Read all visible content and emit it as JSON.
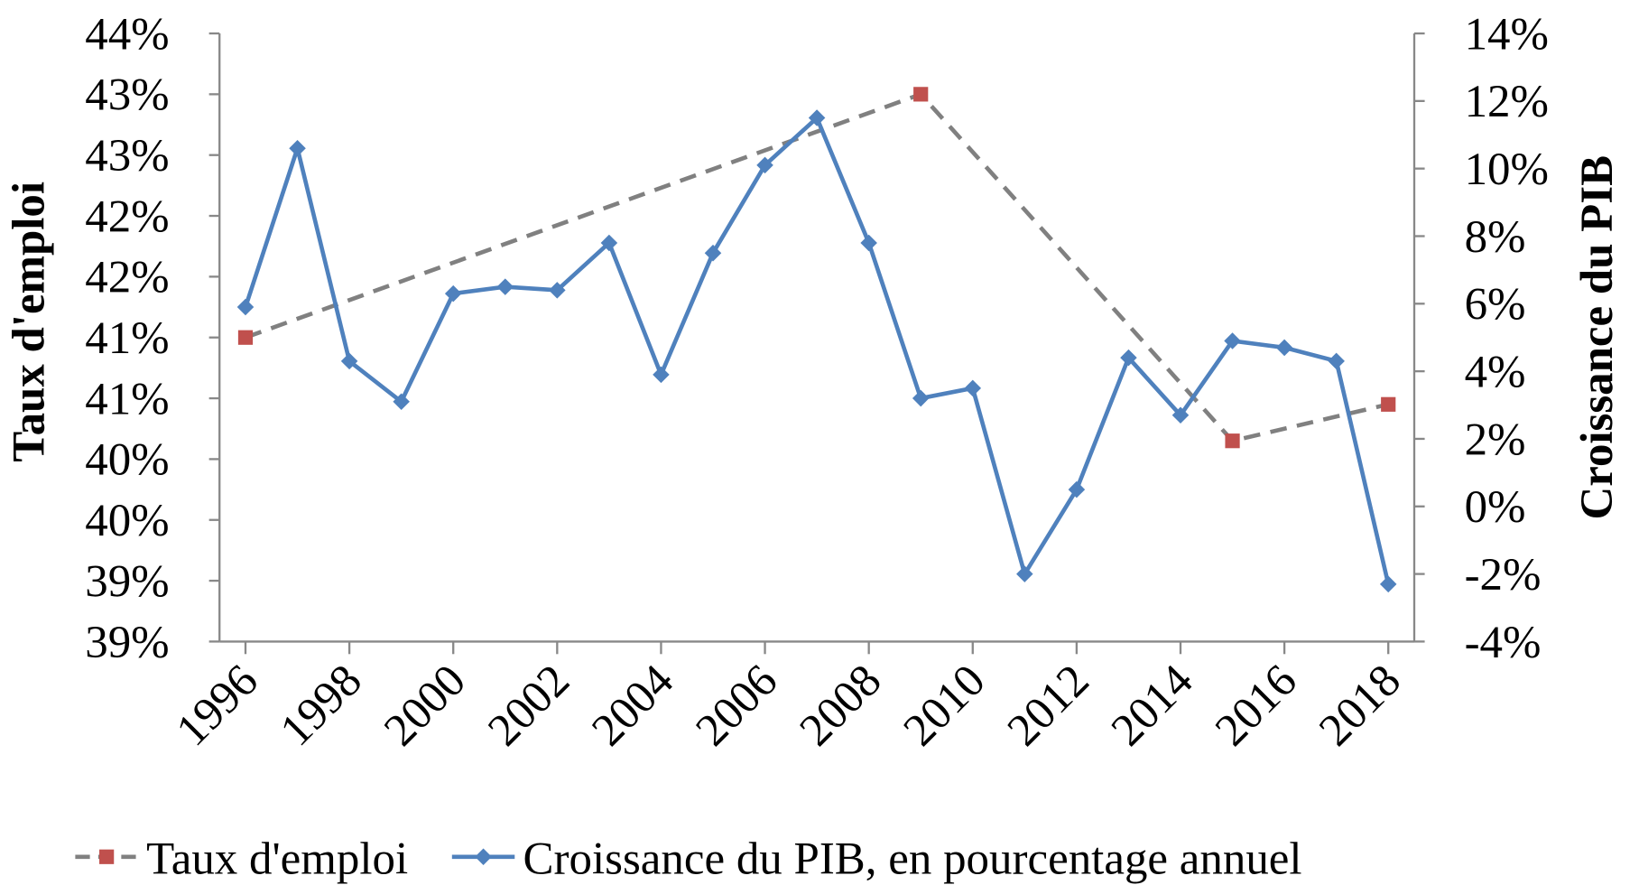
{
  "chart_data": {
    "type": "line",
    "y_label": "Taux d'emploi",
    "y2_label": "Croissance du PIB",
    "xlim": [
      1995.5,
      2018.5
    ],
    "xticks": [
      1996,
      1998,
      2000,
      2002,
      2004,
      2006,
      2008,
      2010,
      2012,
      2014,
      2016,
      2018
    ],
    "ylim": [
      38.5,
      43.5
    ],
    "yticks": [
      {
        "value": 38.5,
        "label": "39%"
      },
      {
        "value": 39,
        "label": "39%"
      },
      {
        "value": 39.5,
        "label": "40%"
      },
      {
        "value": 40,
        "label": "40%"
      },
      {
        "value": 40.5,
        "label": "41%"
      },
      {
        "value": 41,
        "label": "41%"
      },
      {
        "value": 41.5,
        "label": "42%"
      },
      {
        "value": 42,
        "label": "42%"
      },
      {
        "value": 42.5,
        "label": "43%"
      },
      {
        "value": 43,
        "label": "43%"
      },
      {
        "value": 43.5,
        "label": "44%"
      }
    ],
    "y2lim": [
      -4,
      14
    ],
    "y2ticks": [
      {
        "value": -4,
        "label": "-4%"
      },
      {
        "value": -2,
        "label": "-2%"
      },
      {
        "value": 0,
        "label": "0%"
      },
      {
        "value": 2,
        "label": "2%"
      },
      {
        "value": 4,
        "label": "4%"
      },
      {
        "value": 6,
        "label": "6%"
      },
      {
        "value": 8,
        "label": "8%"
      },
      {
        "value": 10,
        "label": "10%"
      },
      {
        "value": 12,
        "label": "12%"
      },
      {
        "value": 14,
        "label": "14%"
      }
    ],
    "legend": "bottom",
    "series": [
      {
        "name": "Taux d'emploi",
        "color": "#c0504d",
        "line_color": "#808080",
        "dashed": true,
        "marker": "square",
        "x": [
          1996,
          2009,
          2015,
          2018
        ],
        "values": [
          41.0,
          43.0,
          40.15,
          40.45
        ]
      },
      {
        "name": "Croissance du PIB, en pourcentage annuel",
        "color": "#4f81bd",
        "line_color": "#4f81bd",
        "dashed": false,
        "marker": "diamond",
        "axis": "y2",
        "x": [
          1996,
          1997,
          1998,
          1999,
          2000,
          2001,
          2002,
          2003,
          2004,
          2005,
          2006,
          2007,
          2008,
          2009,
          2010,
          2011,
          2012,
          2013,
          2014,
          2015,
          2016,
          2017,
          2018
        ],
        "values": [
          5.9,
          10.6,
          4.3,
          3.1,
          6.3,
          6.5,
          6.4,
          7.8,
          3.9,
          7.5,
          10.1,
          11.5,
          7.8,
          3.2,
          3.5,
          -2.0,
          0.5,
          4.4,
          2.7,
          4.9,
          4.7,
          4.3,
          -2.3
        ]
      }
    ]
  }
}
